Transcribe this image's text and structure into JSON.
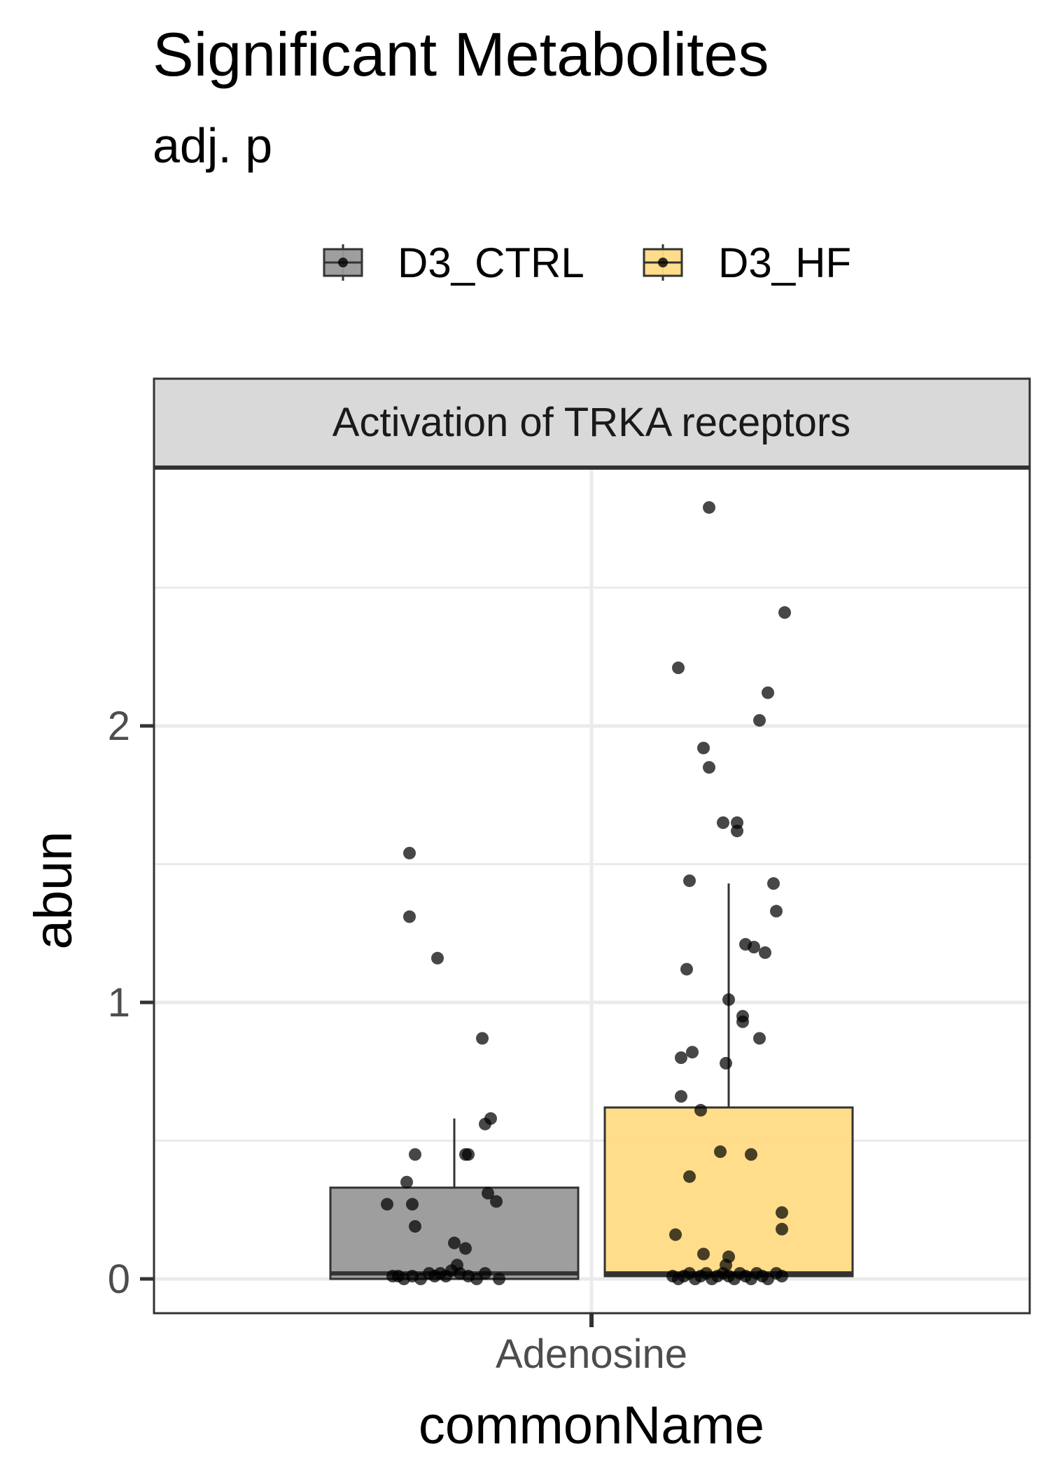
{
  "chart_data": {
    "type": "boxplot",
    "title": "Significant Metabolites",
    "subtitle": "adj. p",
    "facet_label": "Activation of TRKA receptors",
    "xlabel": "commonName",
    "ylabel": "abun",
    "categories": [
      "Adenosine"
    ],
    "y_ticks": [
      "0",
      "1",
      "2"
    ],
    "ylim": [
      -0.1,
      2.9
    ],
    "grid": true,
    "legend_position": "top",
    "series": [
      {
        "name": "D3_CTRL",
        "color": "#999999",
        "box": {
          "min": 0.0,
          "q1": 0.0,
          "median": 0.02,
          "q3": 0.33,
          "max": 0.58
        },
        "points": [
          {
            "jitter": -0.16,
            "y": 1.54
          },
          {
            "jitter": -0.16,
            "y": 1.31
          },
          {
            "jitter": -0.06,
            "y": 1.16
          },
          {
            "jitter": 0.1,
            "y": 0.87
          },
          {
            "jitter": 0.13,
            "y": 0.58
          },
          {
            "jitter": 0.11,
            "y": 0.56
          },
          {
            "jitter": 0.04,
            "y": 0.45
          },
          {
            "jitter": 0.05,
            "y": 0.45
          },
          {
            "jitter": -0.14,
            "y": 0.45
          },
          {
            "jitter": -0.17,
            "y": 0.35
          },
          {
            "jitter": 0.12,
            "y": 0.31
          },
          {
            "jitter": 0.15,
            "y": 0.28
          },
          {
            "jitter": -0.24,
            "y": 0.27
          },
          {
            "jitter": -0.15,
            "y": 0.27
          },
          {
            "jitter": -0.14,
            "y": 0.19
          },
          {
            "jitter": 0.04,
            "y": 0.11
          },
          {
            "jitter": 0.0,
            "y": 0.13
          },
          {
            "jitter": 0.01,
            "y": 0.05
          },
          {
            "jitter": -0.22,
            "y": 0.01
          },
          {
            "jitter": -0.2,
            "y": 0.01
          },
          {
            "jitter": -0.18,
            "y": 0.0
          },
          {
            "jitter": -0.15,
            "y": 0.01
          },
          {
            "jitter": -0.12,
            "y": 0.0
          },
          {
            "jitter": -0.09,
            "y": 0.02
          },
          {
            "jitter": -0.07,
            "y": 0.01
          },
          {
            "jitter": -0.05,
            "y": 0.02
          },
          {
            "jitter": -0.03,
            "y": 0.01
          },
          {
            "jitter": -0.01,
            "y": 0.03
          },
          {
            "jitter": 0.02,
            "y": 0.02
          },
          {
            "jitter": 0.05,
            "y": 0.01
          },
          {
            "jitter": 0.08,
            "y": 0.0
          },
          {
            "jitter": 0.11,
            "y": 0.02
          },
          {
            "jitter": 0.16,
            "y": 0.0
          }
        ]
      },
      {
        "name": "D3_HF",
        "color": "#FFDB84",
        "box": {
          "min": 0.0,
          "q1": 0.01,
          "median": 0.02,
          "q3": 0.62,
          "max": 1.43
        },
        "points": [
          {
            "jitter": -0.07,
            "y": 2.79
          },
          {
            "jitter": 0.2,
            "y": 2.41
          },
          {
            "jitter": -0.18,
            "y": 2.21
          },
          {
            "jitter": 0.14,
            "y": 2.12
          },
          {
            "jitter": 0.11,
            "y": 2.02
          },
          {
            "jitter": -0.09,
            "y": 1.92
          },
          {
            "jitter": -0.07,
            "y": 1.85
          },
          {
            "jitter": -0.02,
            "y": 1.65
          },
          {
            "jitter": 0.03,
            "y": 1.65
          },
          {
            "jitter": 0.03,
            "y": 1.62
          },
          {
            "jitter": -0.14,
            "y": 1.44
          },
          {
            "jitter": 0.16,
            "y": 1.43
          },
          {
            "jitter": 0.17,
            "y": 1.33
          },
          {
            "jitter": 0.06,
            "y": 1.21
          },
          {
            "jitter": 0.09,
            "y": 1.2
          },
          {
            "jitter": 0.13,
            "y": 1.18
          },
          {
            "jitter": -0.15,
            "y": 1.12
          },
          {
            "jitter": 0.0,
            "y": 1.01
          },
          {
            "jitter": 0.05,
            "y": 0.95
          },
          {
            "jitter": 0.05,
            "y": 0.93
          },
          {
            "jitter": 0.11,
            "y": 0.87
          },
          {
            "jitter": -0.13,
            "y": 0.82
          },
          {
            "jitter": -0.17,
            "y": 0.8
          },
          {
            "jitter": -0.01,
            "y": 0.78
          },
          {
            "jitter": -0.17,
            "y": 0.66
          },
          {
            "jitter": -0.1,
            "y": 0.61
          },
          {
            "jitter": -0.03,
            "y": 0.46
          },
          {
            "jitter": 0.08,
            "y": 0.45
          },
          {
            "jitter": -0.14,
            "y": 0.37
          },
          {
            "jitter": 0.19,
            "y": 0.24
          },
          {
            "jitter": 0.19,
            "y": 0.18
          },
          {
            "jitter": -0.19,
            "y": 0.16
          },
          {
            "jitter": -0.09,
            "y": 0.09
          },
          {
            "jitter": 0.0,
            "y": 0.08
          },
          {
            "jitter": -0.01,
            "y": 0.05
          },
          {
            "jitter": -0.2,
            "y": 0.01
          },
          {
            "jitter": -0.18,
            "y": 0.0
          },
          {
            "jitter": -0.16,
            "y": 0.01
          },
          {
            "jitter": -0.14,
            "y": 0.02
          },
          {
            "jitter": -0.12,
            "y": 0.0
          },
          {
            "jitter": -0.1,
            "y": 0.01
          },
          {
            "jitter": -0.08,
            "y": 0.02
          },
          {
            "jitter": -0.06,
            "y": 0.0
          },
          {
            "jitter": -0.04,
            "y": 0.01
          },
          {
            "jitter": -0.02,
            "y": 0.02
          },
          {
            "jitter": 0.0,
            "y": 0.01
          },
          {
            "jitter": 0.02,
            "y": 0.0
          },
          {
            "jitter": 0.04,
            "y": 0.02
          },
          {
            "jitter": 0.06,
            "y": 0.01
          },
          {
            "jitter": 0.08,
            "y": 0.0
          },
          {
            "jitter": 0.1,
            "y": 0.02
          },
          {
            "jitter": 0.12,
            "y": 0.01
          },
          {
            "jitter": 0.14,
            "y": 0.0
          },
          {
            "jitter": 0.17,
            "y": 0.02
          },
          {
            "jitter": 0.19,
            "y": 0.01
          }
        ]
      }
    ]
  }
}
